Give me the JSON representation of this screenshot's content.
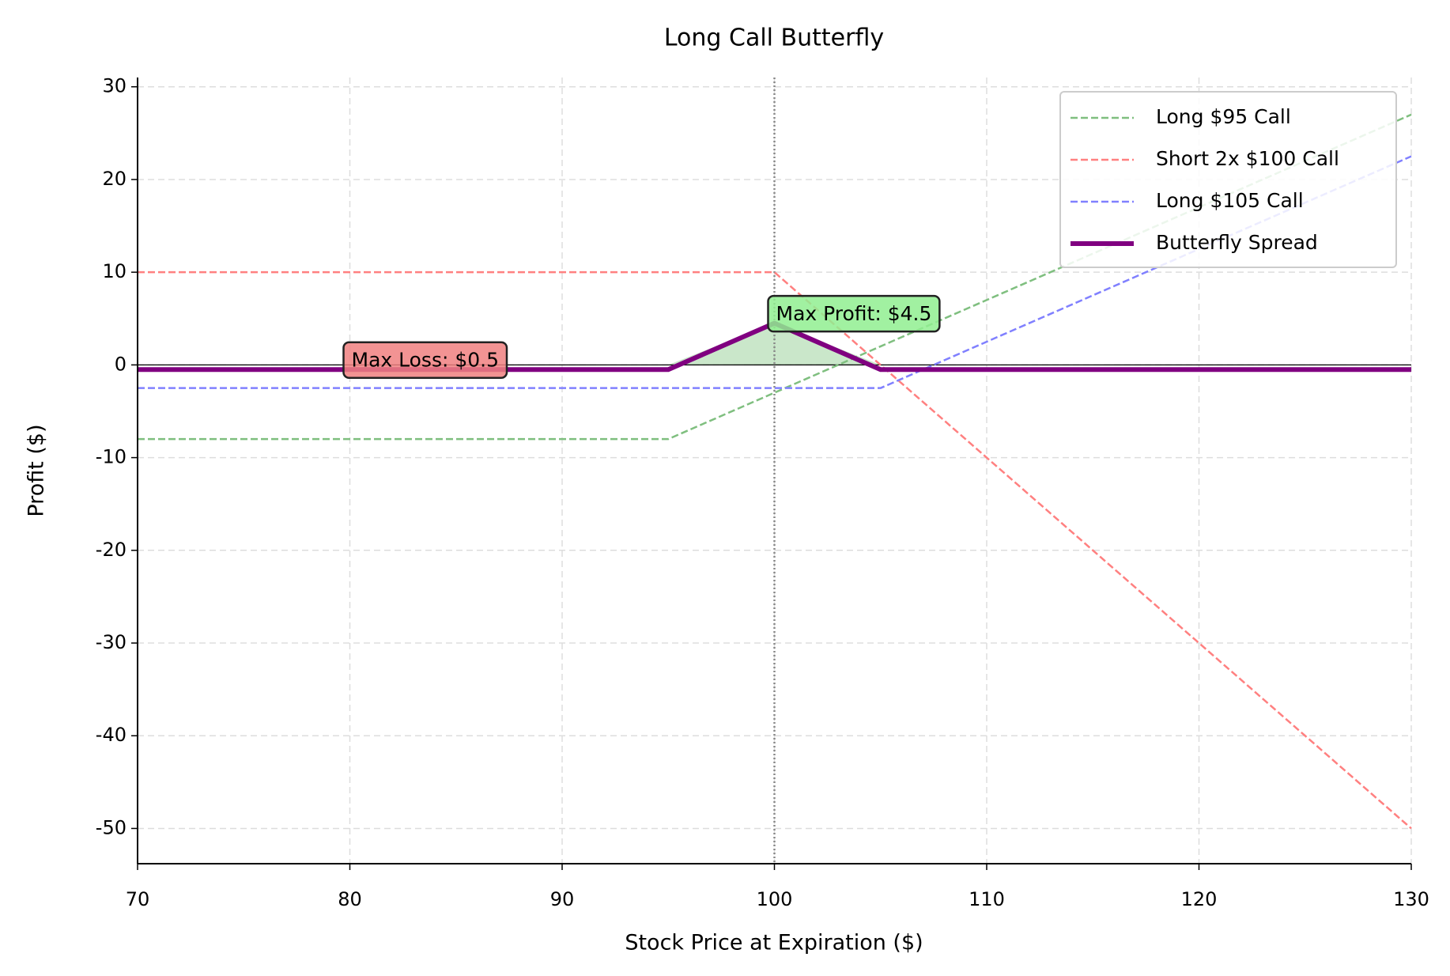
{
  "chart_data": {
    "type": "line",
    "title": "Long Call Butterfly",
    "xlabel": "Stock Price at Expiration ($)",
    "ylabel": "Profit ($)",
    "x": [
      70,
      95,
      100,
      105,
      130
    ],
    "series": [
      {
        "name": "Long $95 Call",
        "color": "#7fbf7f",
        "linestyle": "dashed",
        "values": [
          -8,
          -8,
          -3,
          2,
          27
        ]
      },
      {
        "name": "Short 2x $100 Call",
        "color": "#ff8080",
        "linestyle": "dashed",
        "values": [
          10,
          10,
          10,
          0,
          -50
        ]
      },
      {
        "name": "Long $105 Call",
        "color": "#8080ff",
        "linestyle": "dashed",
        "values": [
          -2.5,
          -2.5,
          -2.5,
          -2.5,
          22.5
        ]
      },
      {
        "name": "Butterfly Spread",
        "color": "#800080",
        "linestyle": "solid",
        "values": [
          -0.5,
          -0.5,
          4.5,
          -0.5,
          -0.5
        ]
      }
    ],
    "fill_series": 3,
    "fill_color": "#2ca02c",
    "vline": 100,
    "annotations": [
      {
        "text": "Max Profit: $4.5",
        "x": 100,
        "y": 4.5,
        "color": "#90ee90"
      },
      {
        "text": "Max Loss: $0.5",
        "x": 80,
        "y": -0.5,
        "color": "#f08080"
      }
    ],
    "xlim": [
      70,
      130
    ],
    "xticks": [
      70,
      80,
      90,
      100,
      110,
      120,
      130
    ],
    "ylim": [
      -53.8,
      31
    ],
    "yticks": [
      -50,
      -40,
      -30,
      -20,
      -10,
      0,
      10,
      20,
      30
    ],
    "grid": true,
    "legend": "upper right"
  }
}
